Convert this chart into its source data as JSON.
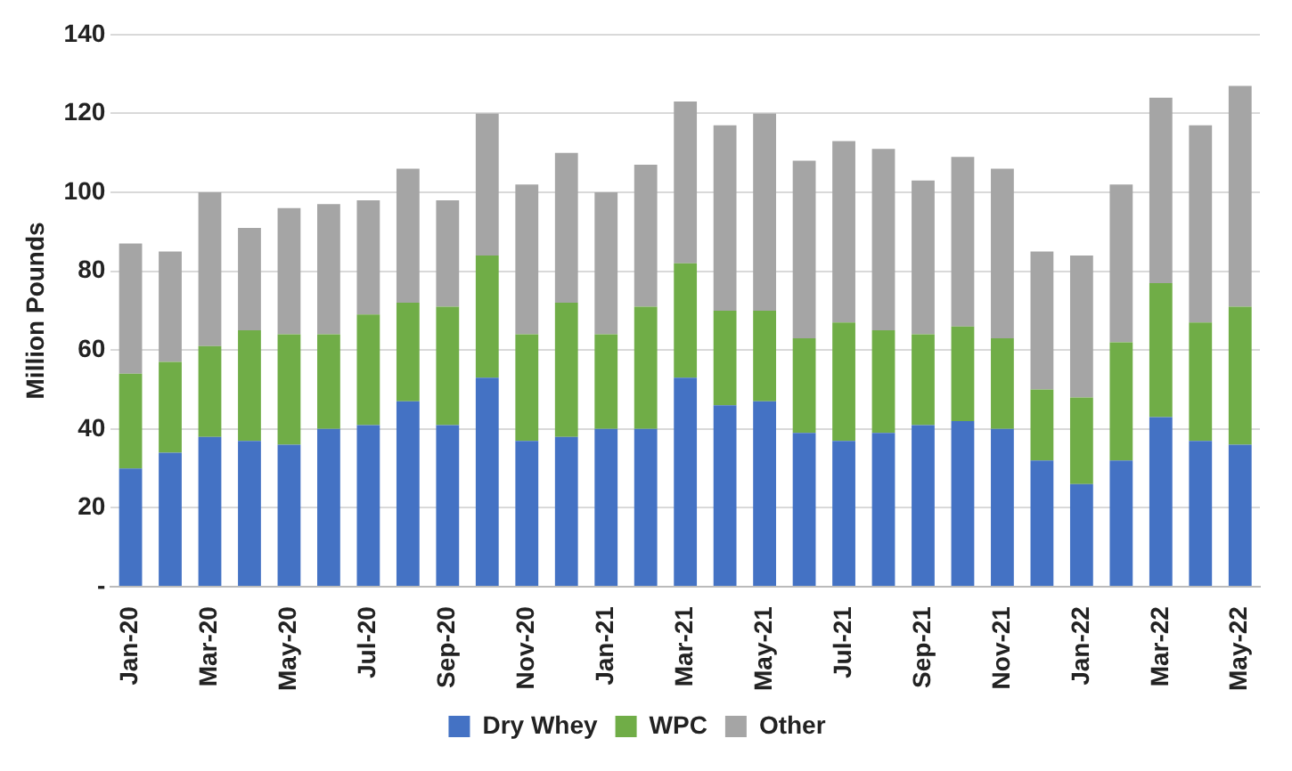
{
  "chart_data": {
    "type": "bar",
    "stacked": true,
    "ylabel": "Million Pounds",
    "categories": [
      "Jan-20",
      null,
      "Mar-20",
      null,
      "May-20",
      null,
      "Jul-20",
      null,
      "Sep-20",
      null,
      "Nov-20",
      null,
      "Jan-21",
      null,
      "Mar-21",
      null,
      "May-21",
      null,
      "Jul-21",
      null,
      "Sep-21",
      null,
      "Nov-21",
      null,
      "Jan-22",
      null,
      "Mar-22",
      null,
      "May-22"
    ],
    "series": [
      {
        "name": "Dry Whey",
        "color": "#4472c4",
        "values": [
          30,
          34,
          38,
          37,
          36,
          40,
          41,
          47,
          41,
          53,
          37,
          38,
          40,
          40,
          53,
          46,
          47,
          39,
          37,
          39,
          41,
          42,
          40,
          32,
          26,
          32,
          43,
          37,
          36
        ]
      },
      {
        "name": "WPC",
        "color": "#70ad47",
        "values": [
          24,
          23,
          23,
          28,
          28,
          24,
          28,
          25,
          30,
          31,
          27,
          34,
          24,
          31,
          29,
          24,
          23,
          24,
          30,
          26,
          23,
          24,
          23,
          18,
          22,
          30,
          34,
          30,
          35
        ]
      },
      {
        "name": "Other",
        "color": "#a5a5a5",
        "values": [
          33,
          28,
          39,
          26,
          32,
          33,
          29,
          34,
          27,
          36,
          38,
          38,
          36,
          36,
          41,
          47,
          50,
          45,
          46,
          46,
          39,
          43,
          43,
          35,
          36,
          40,
          47,
          50,
          56
        ]
      }
    ],
    "ylim": [
      0,
      140
    ],
    "yticks": [
      {
        "value": 0,
        "label": "-"
      },
      20,
      40,
      60,
      80,
      100,
      120,
      140
    ],
    "grid": "y",
    "legend": "bottom"
  }
}
